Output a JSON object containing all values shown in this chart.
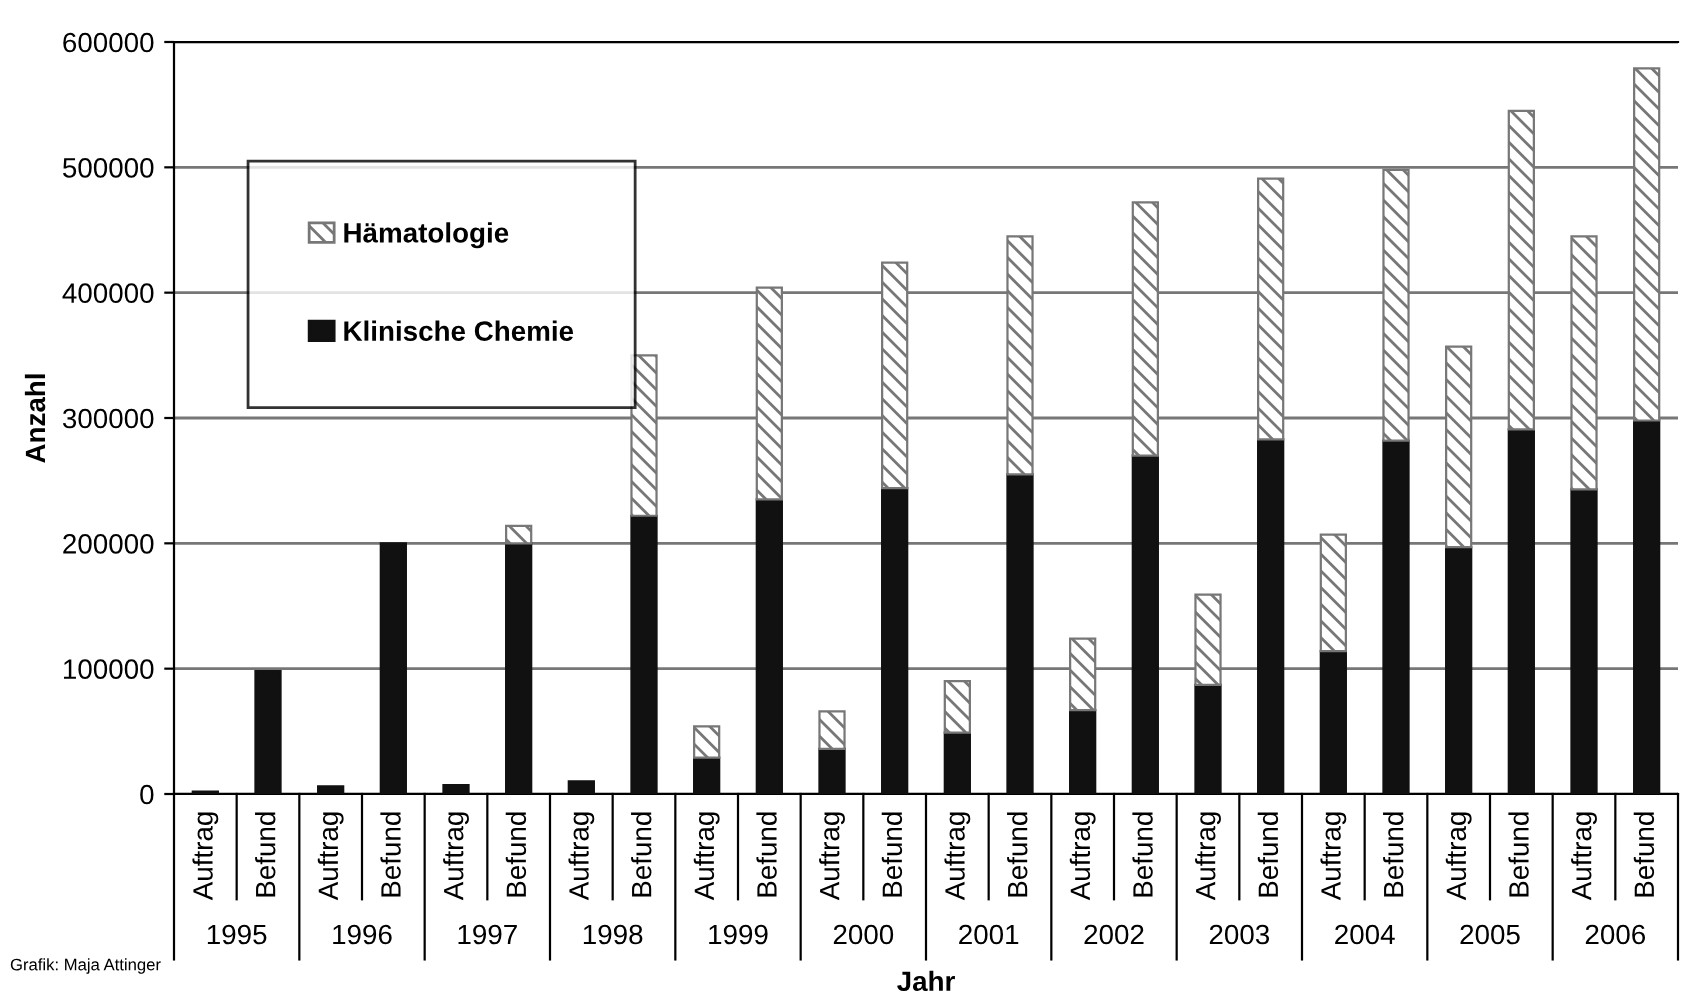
{
  "chart_data": {
    "type": "bar",
    "stacked": true,
    "xlabel": "Jahr",
    "ylabel": "Anzahl",
    "categories": [
      "Auftrag",
      "Befund",
      "Auftrag",
      "Befund",
      "Auftrag",
      "Befund",
      "Auftrag",
      "Befund",
      "Auftrag",
      "Befund",
      "Auftrag",
      "Befund",
      "Auftrag",
      "Befund",
      "Auftrag",
      "Befund",
      "Auftrag",
      "Befund",
      "Auftrag",
      "Befund",
      "Auftrag",
      "Befund",
      "Auftrag",
      "Befund"
    ],
    "series": [
      {
        "name": "Klinische Chemie",
        "color": "#111111",
        "values": [
          2000,
          98000,
          6000,
          200000,
          7000,
          200000,
          10000,
          222000,
          29000,
          235000,
          36000,
          244000,
          49000,
          255000,
          67000,
          270000,
          87000,
          283000,
          114000,
          282000,
          197000,
          291000,
          243000,
          298000
        ]
      },
      {
        "name": "Hämatologie",
        "color": "#777777",
        "values": [
          null,
          null,
          null,
          null,
          null,
          14000,
          null,
          128000,
          25000,
          169000,
          30000,
          180000,
          41000,
          190000,
          57000,
          202000,
          72000,
          208000,
          93000,
          216000,
          160000,
          254000,
          202000,
          281000
        ]
      }
    ],
    "ylim": [
      0,
      600000
    ],
    "yticks": [
      0,
      100000,
      200000,
      300000,
      400000,
      500000,
      600000
    ],
    "grid": "y",
    "legend": "top left",
    "annotations": [
      "1995",
      "1996",
      "1997",
      "1998",
      "1999",
      "2000",
      "2001",
      "2002",
      "2003",
      "2004",
      "2005",
      "2006",
      "Grafik: Maja Attinger"
    ]
  }
}
